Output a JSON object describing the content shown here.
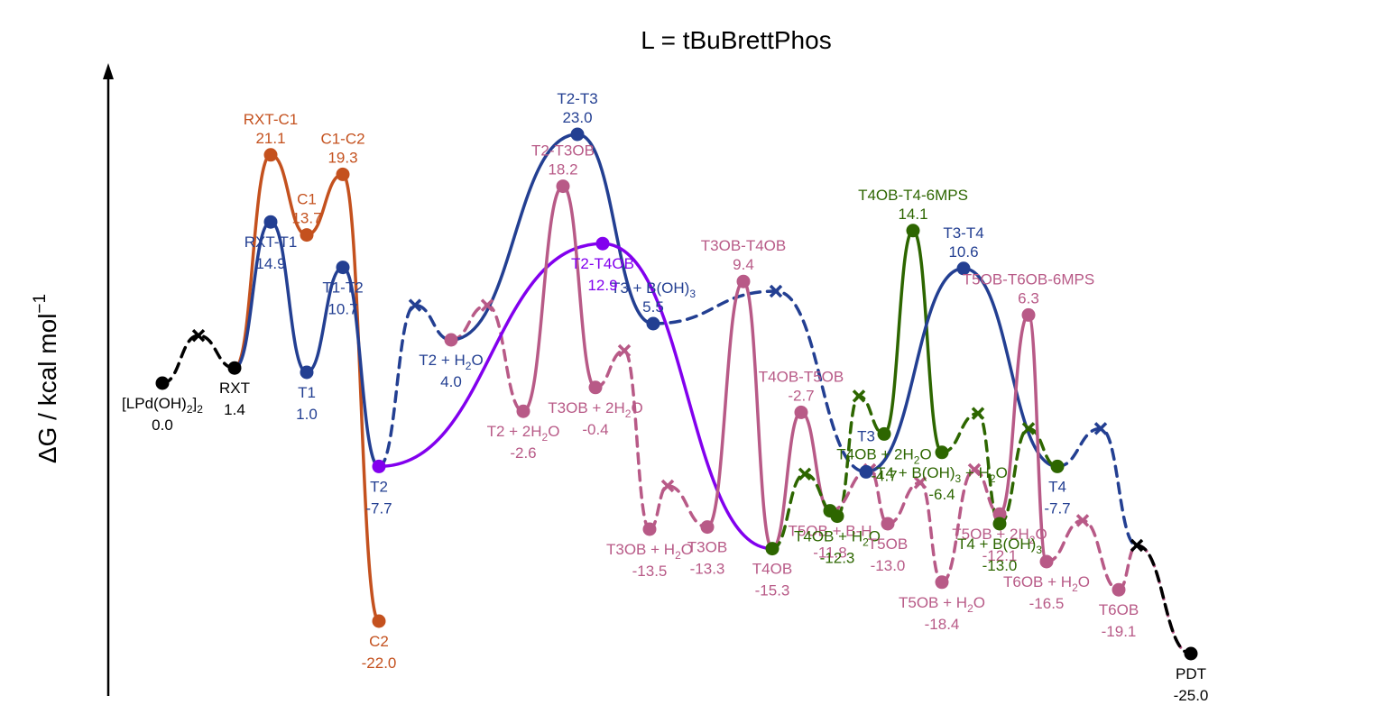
{
  "chart_data": {
    "type": "line",
    "title": "L = tBuBrettPhos",
    "ylabel": "ΔG / kcal mol",
    "ylabel_sup": "−1",
    "ylim": [
      -27.5,
      30
    ],
    "grid": false,
    "colors": {
      "black": "#000000",
      "orange": "#c4511e",
      "blue": "#233f92",
      "purple": "#8200ee",
      "pink": "#b85a87",
      "green": "#2d6600"
    },
    "points": [
      {
        "id": "lpd",
        "xi": 1,
        "y": 0.0,
        "c": "black",
        "m": "dot",
        "label": "[LPd(OH)",
        "sub": "2",
        "after": "]",
        "sub2": "2",
        "value": "0.0",
        "pos": "below"
      },
      {
        "id": "rxt",
        "xi": 3,
        "y": 1.4,
        "c": "black",
        "m": "dot",
        "label": "RXT",
        "value": "1.4",
        "pos": "below"
      },
      {
        "id": "rxtc1",
        "xi": 4,
        "y": 21.1,
        "c": "orange",
        "m": "dot",
        "label": "RXT-C1",
        "value": "21.1",
        "pos": "above"
      },
      {
        "id": "c1",
        "xi": 5,
        "y": 13.7,
        "c": "orange",
        "m": "dot",
        "label": "C1",
        "value": "13.7",
        "pos": "above"
      },
      {
        "id": "c1c2",
        "xi": 6,
        "y": 19.3,
        "c": "orange",
        "m": "dot",
        "label": "C1-C2",
        "value": "19.3",
        "pos": "above"
      },
      {
        "id": "c2",
        "xi": 7,
        "y": -22.0,
        "c": "orange",
        "m": "dot",
        "label": "C2",
        "value": "-22.0",
        "pos": "below"
      },
      {
        "id": "rxtt1",
        "xi": 4,
        "y": 14.9,
        "c": "blue",
        "m": "dot",
        "label": "RXT-T1",
        "value": "14.9",
        "pos": "below"
      },
      {
        "id": "t1",
        "xi": 5,
        "y": 1.0,
        "c": "blue",
        "m": "dot",
        "label": "T1",
        "value": "1.0",
        "pos": "below"
      },
      {
        "id": "t1t2",
        "xi": 6,
        "y": 10.7,
        "c": "blue",
        "m": "dot",
        "label": "T1-T2",
        "value": "10.7",
        "pos": "below"
      },
      {
        "id": "t2",
        "xi": 7,
        "y": -7.7,
        "c": "purple",
        "m": "dot",
        "label": "T2",
        "value": "-7.7",
        "pos": "below",
        "tc": "blue"
      },
      {
        "id": "t2h2o",
        "xi": 9,
        "y": 4.0,
        "c": "pink",
        "m": "dot",
        "label": "T2 + H",
        "sub": "2",
        "after": "O",
        "value": "4.0",
        "pos": "below",
        "tc": "blue"
      },
      {
        "id": "t2t3",
        "xi": 12.5,
        "y": 23.0,
        "c": "blue",
        "m": "dot",
        "label": "T2-T3",
        "value": "23.0",
        "pos": "above"
      },
      {
        "id": "t3boh",
        "xi": 14.6,
        "y": 5.5,
        "c": "blue",
        "m": "dot",
        "label": "T3 + B(OH)",
        "sub": "3",
        "value": "5.5",
        "pos": "above"
      },
      {
        "id": "t2t4ob",
        "xi": 13.2,
        "y": 12.9,
        "c": "purple",
        "m": "dot",
        "label": "T2-T4OB",
        "value": "12.9",
        "pos": "below"
      },
      {
        "id": "t4ob",
        "xi": 17.9,
        "y": -15.3,
        "c": "green",
        "m": "dot",
        "label": "T4OB",
        "value": "-15.3",
        "pos": "below",
        "tc": "pink"
      },
      {
        "id": "t22h2o",
        "xi": 11,
        "y": -2.6,
        "c": "pink",
        "m": "dot",
        "label": "T2 + 2H",
        "sub": "2",
        "after": "O",
        "value": "-2.6",
        "pos": "below"
      },
      {
        "id": "t2t3ob",
        "xi": 12.1,
        "y": 18.2,
        "c": "pink",
        "m": "dot",
        "label": "T2-T3OB",
        "value": "18.2",
        "pos": "above"
      },
      {
        "id": "t3ob2h2o",
        "xi": 13,
        "y": -0.4,
        "c": "pink",
        "m": "dot",
        "label": "T3OB + 2H",
        "sub": "2",
        "after": "O",
        "value": "-0.4",
        "pos": "below"
      },
      {
        "id": "t3obh2o",
        "xi": 14.5,
        "y": -13.5,
        "c": "pink",
        "m": "dot",
        "label": "T3OB + H",
        "sub": "2",
        "after": "O",
        "value": "-13.5",
        "pos": "below"
      },
      {
        "id": "t3ob",
        "xi": 16.1,
        "y": -13.3,
        "c": "pink",
        "m": "dot",
        "label": "T3OB",
        "value": "-13.3",
        "pos": "below"
      },
      {
        "id": "t3obt4ob",
        "xi": 17.1,
        "y": 9.4,
        "c": "pink",
        "m": "dot",
        "label": "T3OB-T4OB",
        "value": "9.4",
        "pos": "above"
      },
      {
        "id": "t4obt5ob",
        "xi": 18.7,
        "y": -2.7,
        "c": "pink",
        "m": "dot",
        "label": "T4OB-T5OB",
        "value": "-2.7",
        "pos": "above"
      },
      {
        "id": "t5obbh",
        "xi": 19.5,
        "y": -11.8,
        "c": "green",
        "m": "dot",
        "label": "T5OB + B-H",
        "value": "-11.8",
        "pos": "below",
        "tc": "pink"
      },
      {
        "id": "t4obh2o",
        "xi": 19.7,
        "y": -12.3,
        "c": "green",
        "m": "dot",
        "label": "T4OB + H",
        "sub": "2",
        "after": "O",
        "value": "-12.3",
        "pos": "below"
      },
      {
        "id": "t3b",
        "xi": 20.5,
        "y": -8.2,
        "c": "blue",
        "m": "dot",
        "label": "T3",
        "value": "",
        "pos": "above"
      },
      {
        "id": "t5ob",
        "xi": 21.1,
        "y": -13.0,
        "c": "pink",
        "m": "dot",
        "label": "T5OB",
        "value": "-13.0",
        "pos": "below"
      },
      {
        "id": "t4ob2h2o",
        "xi": 21,
        "y": -4.7,
        "c": "green",
        "m": "dot",
        "label": "T4OB + 2H",
        "sub": "2",
        "after": "O",
        "value": "-4.7",
        "pos": "below"
      },
      {
        "id": "t4obt46mps",
        "xi": 21.8,
        "y": 14.1,
        "c": "green",
        "m": "dot",
        "label": "T4OB-T4-6MPS",
        "value": "14.1",
        "pos": "above"
      },
      {
        "id": "t4bohh2o",
        "xi": 22.6,
        "y": -6.4,
        "c": "green",
        "m": "dot",
        "label": "T4 + B(OH)",
        "sub": "3",
        "after": " + H",
        "sub2": "2",
        "after2": "O",
        "value": "-6.4",
        "pos": "below"
      },
      {
        "id": "t5obh2o",
        "xi": 22.6,
        "y": -18.4,
        "c": "pink",
        "m": "dot",
        "label": "T5OB + H",
        "sub": "2",
        "after": "O",
        "value": "-18.4",
        "pos": "below"
      },
      {
        "id": "t3t4",
        "xi": 23.2,
        "y": 10.6,
        "c": "blue",
        "m": "dot",
        "label": "T3-T4",
        "value": "10.6",
        "pos": "above"
      },
      {
        "id": "t5ob2h2o",
        "xi": 24.2,
        "y": -12.1,
        "c": "pink",
        "m": "dot",
        "label": "T5OB + 2H",
        "sub": "2",
        "after": "O",
        "value": "-12.1",
        "pos": "below"
      },
      {
        "id": "t4boh",
        "xi": 24.2,
        "y": -13.0,
        "c": "green",
        "m": "dot",
        "label": "T4 + B(OH)",
        "sub": "3",
        "value": "-13.0",
        "pos": "below"
      },
      {
        "id": "t5obt6ob6mps",
        "xi": 25,
        "y": 6.3,
        "c": "pink",
        "m": "dot",
        "label": "T5OB-T6OB-6MPS",
        "value": "6.3",
        "pos": "above"
      },
      {
        "id": "t4",
        "xi": 25.8,
        "y": -7.7,
        "c": "green",
        "m": "dot",
        "label": "T4",
        "value": "-7.7",
        "pos": "below",
        "tc": "blue"
      },
      {
        "id": "t6obh2o",
        "xi": 25.5,
        "y": -16.5,
        "c": "pink",
        "m": "dot",
        "label": "T6OB + H",
        "sub": "2",
        "after": "O",
        "value": "-16.5",
        "pos": "below"
      },
      {
        "id": "t6ob",
        "xi": 27.5,
        "y": -19.1,
        "c": "pink",
        "m": "dot",
        "label": "T6OB",
        "value": "-19.1",
        "pos": "below"
      },
      {
        "id": "pdt",
        "xi": 29.5,
        "y": -25.0,
        "c": "black",
        "m": "dot",
        "label": "PDT",
        "value": "-25.0",
        "pos": "below"
      }
    ]
  }
}
